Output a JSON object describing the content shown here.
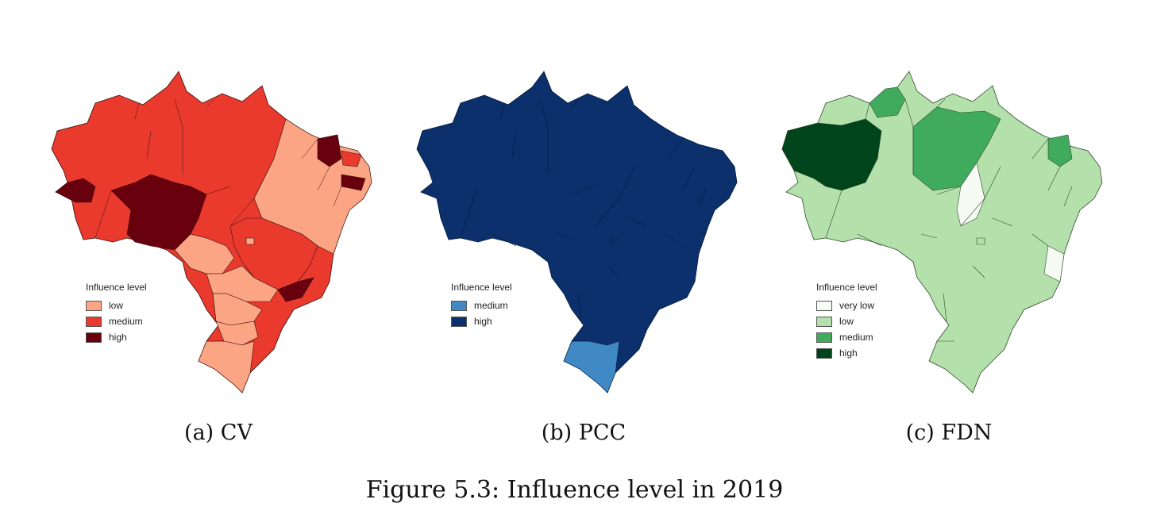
{
  "legend_title": "Influence level",
  "figure_caption": "Figure 5.3: Influence level in 2019",
  "maps": [
    {
      "caption": "(a) CV",
      "colors": {
        "low": "#fba584",
        "medium": "#e93a2d",
        "high": "#69000d"
      },
      "legend": [
        {
          "label": "low",
          "color": "#fba584"
        },
        {
          "label": "medium",
          "color": "#e93a2d"
        },
        {
          "label": "high",
          "color": "#69000d"
        }
      ]
    },
    {
      "caption": "(b) PCC",
      "colors": {
        "medium": "#4189c4",
        "high": "#0b306b"
      },
      "legend": [
        {
          "label": "medium",
          "color": "#4189c4"
        },
        {
          "label": "high",
          "color": "#0b306b"
        }
      ]
    },
    {
      "caption": "(c) FDN",
      "colors": {
        "very_low": "#f6fcf4",
        "low": "#b3e0ab",
        "medium": "#41ab5d",
        "high": "#00441b"
      },
      "legend": [
        {
          "label": "very low",
          "color": "#f6fcf4"
        },
        {
          "label": "low",
          "color": "#b3e0ab"
        },
        {
          "label": "medium",
          "color": "#41ab5d"
        },
        {
          "label": "high",
          "color": "#00441b"
        }
      ]
    }
  ]
}
